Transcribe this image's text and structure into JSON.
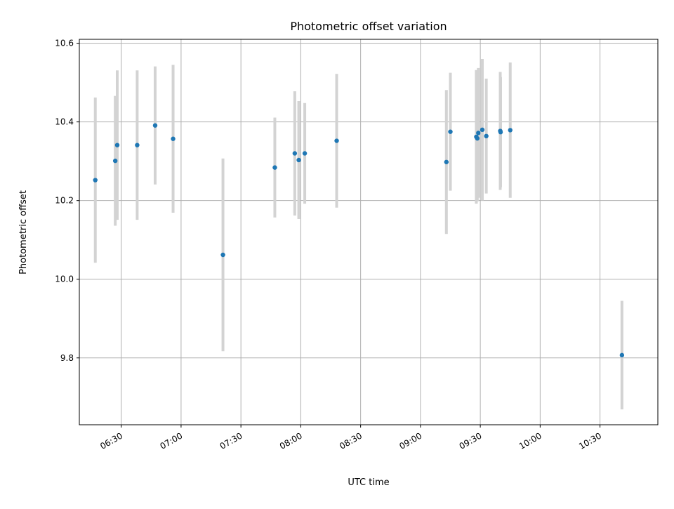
{
  "chart_data": {
    "type": "scatter",
    "title": "Photometric offset variation",
    "xlabel": "UTC time",
    "ylabel": "Photometric offset",
    "x_ticks": [
      "06:30",
      "07:00",
      "07:30",
      "08:00",
      "08:30",
      "09:00",
      "09:30",
      "10:00",
      "10:30"
    ],
    "y_ticks": [
      "9.8",
      "10.0",
      "10.2",
      "10.4",
      "10.6"
    ],
    "xlim": [
      "06:09",
      "10:59"
    ],
    "ylim": [
      9.63,
      10.61
    ],
    "grid": true,
    "colors": {
      "point": "#1f77b4",
      "errorbar": "#d3d3d3",
      "grid": "#b0b0b0"
    },
    "points": [
      {
        "x": "06:17:00",
        "y": 10.252,
        "err": 0.21
      },
      {
        "x": "06:27:00",
        "y": 10.301,
        "err": 0.165
      },
      {
        "x": "06:28:00",
        "y": 10.341,
        "err": 0.19
      },
      {
        "x": "06:38:00",
        "y": 10.341,
        "err": 0.19
      },
      {
        "x": "06:47:00",
        "y": 10.391,
        "err": 0.15
      },
      {
        "x": "06:56:00",
        "y": 10.357,
        "err": 0.188
      },
      {
        "x": "07:21:00",
        "y": 10.062,
        "err": 0.245
      },
      {
        "x": "07:47:00",
        "y": 10.284,
        "err": 0.127
      },
      {
        "x": "07:57:00",
        "y": 10.32,
        "err": 0.158
      },
      {
        "x": "07:59:00",
        "y": 10.303,
        "err": 0.15
      },
      {
        "x": "08:02:00",
        "y": 10.32,
        "err": 0.128
      },
      {
        "x": "08:18:00",
        "y": 10.352,
        "err": 0.17
      },
      {
        "x": "09:13:00",
        "y": 10.298,
        "err": 0.183
      },
      {
        "x": "09:15:00",
        "y": 10.375,
        "err": 0.15
      },
      {
        "x": "09:28:00",
        "y": 10.362,
        "err": 0.17
      },
      {
        "x": "09:28:30",
        "y": 10.358,
        "err": 0.16
      },
      {
        "x": "09:29:00",
        "y": 10.372,
        "err": 0.165
      },
      {
        "x": "09:31:00",
        "y": 10.38,
        "err": 0.18
      },
      {
        "x": "09:33:00",
        "y": 10.364,
        "err": 0.146
      },
      {
        "x": "09:40:00",
        "y": 10.377,
        "err": 0.15
      },
      {
        "x": "09:40:10",
        "y": 10.374,
        "err": 0.14
      },
      {
        "x": "09:45:00",
        "y": 10.379,
        "err": 0.172
      },
      {
        "x": "10:41:00",
        "y": 9.807,
        "err": 0.138
      }
    ]
  }
}
